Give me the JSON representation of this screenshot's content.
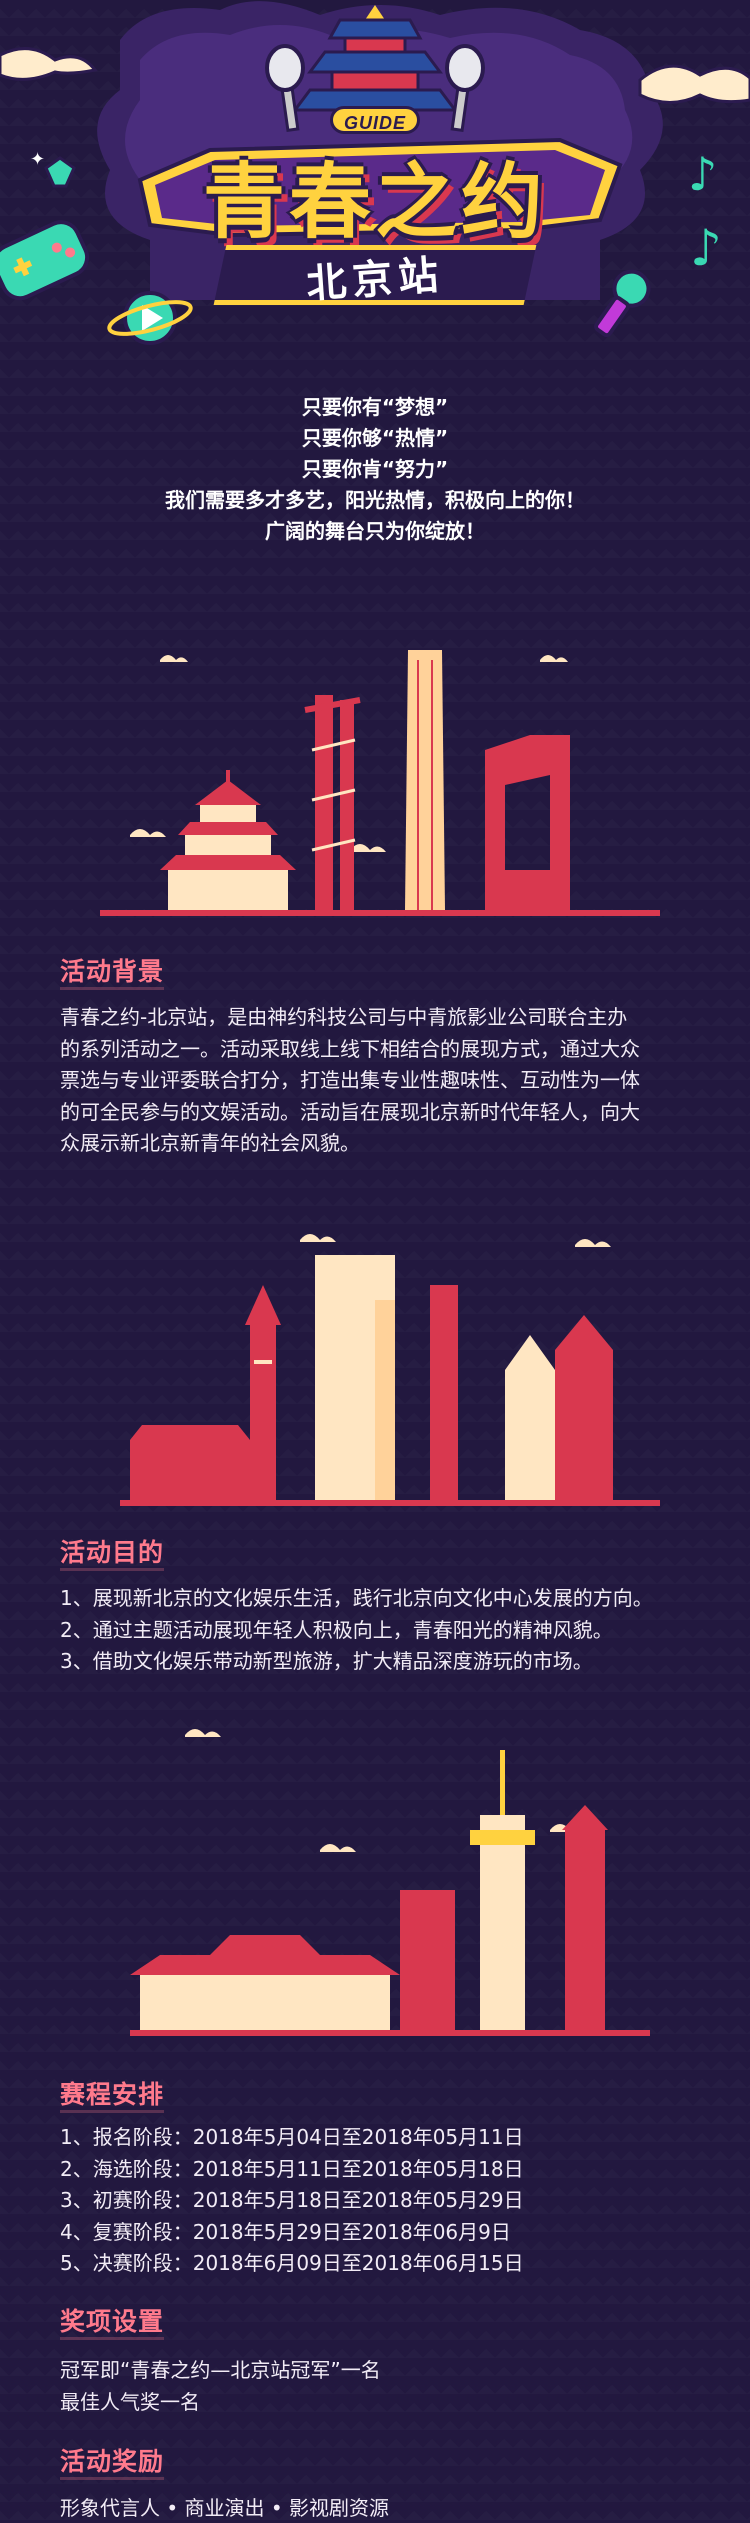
{
  "hero": {
    "badge": "GUIDE",
    "title": "青春之约",
    "subtitle": "北京站"
  },
  "intro": {
    "lines": [
      "只要你有“梦想”",
      "只要你够“热情”",
      "只要你肯“努力”",
      "我们需要多才多艺，阳光热情，积极向上的你！",
      "广阔的舞台只为你绽放！"
    ]
  },
  "background": {
    "title": "活动背景",
    "lines": [
      "青春之约-北京站，是由神约科技公司与中青旅影业公司联合主办",
      "的系列活动之一。活动采取线上线下相结合的展现方式，通过大众",
      "票选与专业评委联合打分，打造出集专业性趣味性、互动性为一体",
      "的可全民参与的文娱活动。活动旨在展现北京新时代年轻人，向大",
      "众展示新北京新青年的社会风貌。"
    ]
  },
  "purpose": {
    "title": "活动目的",
    "items": [
      "1、展现新北京的文化娱乐生活，践行北京向文化中心发展的方向。",
      "2、通过主题活动展现年轻人积极向上，青春阳光的精神风貌。",
      "3、借助文化娱乐带动新型旅游，扩大精品深度游玩的市场。"
    ]
  },
  "schedule": {
    "title": "赛程安排",
    "items": [
      "1、报名阶段：2018年5月04日至2018年05月11日",
      "2、海选阶段：2018年5月11日至2018年05月18日",
      "3、初赛阶段：2018年5月18日至2018年05月29日",
      "4、复赛阶段：2018年5月29日至2018年06月9日",
      "5、决赛阶段：2018年6月09日至2018年06月15日"
    ]
  },
  "awards": {
    "title": "奖项设置",
    "items": [
      "冠军即“青春之约—北京站冠军”一名",
      "最佳人气奖一名"
    ]
  },
  "rewards": {
    "title": "活动奖励",
    "line": "形象代言人 • 商业演出 • 影视剧资源"
  },
  "colors": {
    "background": "#22183f",
    "accent_pink": "#ff7a8c",
    "accent_yellow": "#ffd23f",
    "building_red": "#d9384f",
    "building_cream": "#ffe6c2"
  }
}
